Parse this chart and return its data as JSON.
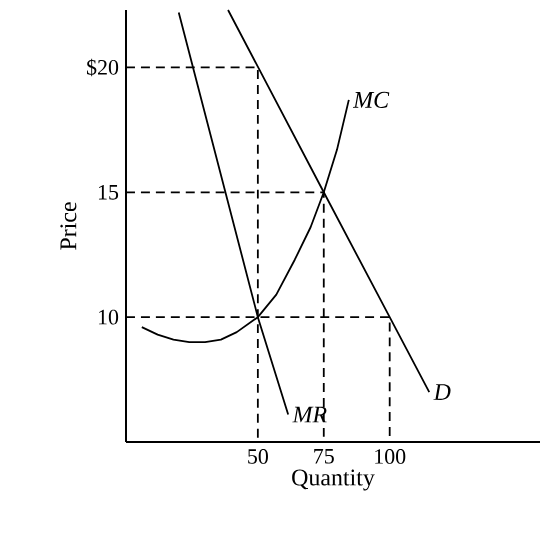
{
  "chart_data": {
    "type": "line",
    "xlabel": "Quantity",
    "ylabel": "Price",
    "xlim": [
      0,
      157
    ],
    "ylim": [
      5,
      22.3
    ],
    "xticks": [
      50,
      75,
      100
    ],
    "yticks": [
      10,
      15,
      {
        "value": 20,
        "label": "$20"
      }
    ],
    "marker": "none",
    "series": [
      {
        "name": "MC",
        "color": "#000000",
        "x": [
          6,
          12,
          18,
          24,
          30,
          36,
          42,
          50,
          57,
          64,
          70,
          75,
          80,
          84.5
        ],
        "values": [
          9.6,
          9.3,
          9.1,
          9,
          9,
          9.1,
          9.4,
          10,
          10.9,
          12.3,
          13.6,
          15,
          16.7,
          18.7
        ]
      },
      {
        "name": "MR",
        "color": "#000000",
        "x": [
          20,
          50,
          61.5
        ],
        "values": [
          22.2,
          10,
          6.1
        ]
      },
      {
        "name": "D",
        "color": "#000000",
        "x": [
          38.7,
          75,
          100,
          115
        ],
        "values": [
          22.3,
          15,
          10,
          7
        ]
      },
      {
        "color": "#000000",
        "line_style": "dashed",
        "x": [
          0,
          50,
          50
        ],
        "values": [
          20,
          20,
          5
        ]
      },
      {
        "color": "#000000",
        "line_style": "dashed",
        "x": [
          0,
          75,
          75
        ],
        "values": [
          15,
          15,
          5
        ]
      },
      {
        "color": "#000000",
        "line_style": "dashed",
        "x": [
          0,
          100,
          100
        ],
        "values": [
          10,
          10,
          5
        ]
      }
    ]
  }
}
